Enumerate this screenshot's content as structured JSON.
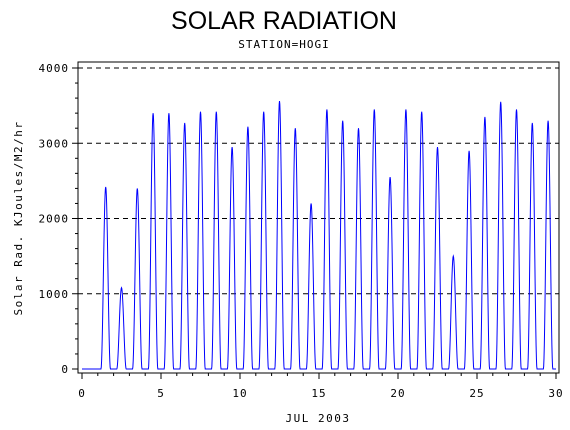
{
  "chart_data": {
    "type": "line",
    "title": "SOLAR RADIATION",
    "subtitle": "STATION=HOGI",
    "xlabel": "JUL 2003",
    "ylabel": "Solar Rad. KJoules/M2/hr",
    "xlim": [
      0,
      30
    ],
    "ylim": [
      0,
      4000
    ],
    "x_ticks": [
      "0",
      "5",
      "10",
      "15",
      "20",
      "25",
      "30"
    ],
    "y_ticks": [
      "0",
      "1000",
      "2000",
      "3000",
      "4000"
    ],
    "grid": "horizontal-dashed",
    "series": [
      {
        "color": "#0000ff",
        "daily_peaks": [
          {
            "day": 1,
            "peak": 2420
          },
          {
            "day": 2,
            "peak": 1080
          },
          {
            "day": 3,
            "peak": 2400
          },
          {
            "day": 4,
            "peak": 3400
          },
          {
            "day": 5,
            "peak": 3400
          },
          {
            "day": 6,
            "peak": 3270
          },
          {
            "day": 7,
            "peak": 3420
          },
          {
            "day": 8,
            "peak": 3420
          },
          {
            "day": 9,
            "peak": 2950
          },
          {
            "day": 10,
            "peak": 3220
          },
          {
            "day": 11,
            "peak": 3420
          },
          {
            "day": 12,
            "peak": 3560
          },
          {
            "day": 13,
            "peak": 3200
          },
          {
            "day": 14,
            "peak": 2200
          },
          {
            "day": 15,
            "peak": 3450
          },
          {
            "day": 16,
            "peak": 3300
          },
          {
            "day": 17,
            "peak": 3200
          },
          {
            "day": 18,
            "peak": 3450
          },
          {
            "day": 19,
            "peak": 2550
          },
          {
            "day": 20,
            "peak": 3450
          },
          {
            "day": 21,
            "peak": 3420
          },
          {
            "day": 22,
            "peak": 2950
          },
          {
            "day": 23,
            "peak": 1500
          },
          {
            "day": 24,
            "peak": 2900
          },
          {
            "day": 25,
            "peak": 3350
          },
          {
            "day": 26,
            "peak": 3550
          },
          {
            "day": 27,
            "peak": 3450
          },
          {
            "day": 28,
            "peak": 3270
          },
          {
            "day": 29,
            "peak": 3300
          }
        ]
      }
    ]
  }
}
